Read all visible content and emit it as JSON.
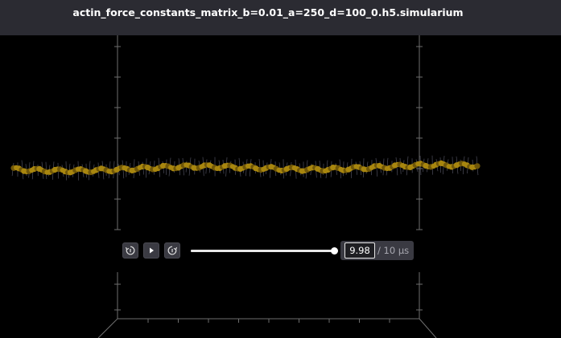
{
  "app": {
    "file_title": "actin_force_constants_matrix_b=0.01_a=250_d=100_0.h5.simularium"
  },
  "viewport": {
    "background_color": "#000000",
    "box_line_color": "#6e6e6e",
    "fiber_color": "#a8860f",
    "fiber_dark_color": "#6f5608"
  },
  "playback": {
    "step_back_icon": "step-back-icon",
    "play_icon": "play-icon",
    "step_forward_icon": "step-forward-icon",
    "progress": 0.998,
    "current_time": "9.98",
    "total_time": "/ 10 μs"
  }
}
